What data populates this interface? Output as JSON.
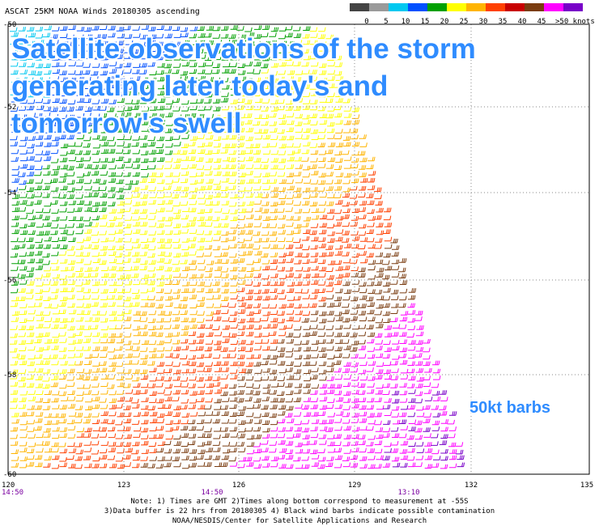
{
  "header": {
    "title": "ASCAT 25KM NOAA Winds 20180305 ascending"
  },
  "legend": {
    "labels": [
      "0",
      "5",
      "10",
      "15",
      "20",
      "25",
      "30",
      "35",
      "40",
      "45",
      ">50 knots"
    ],
    "colors": [
      "#444444",
      "#9a9a9a",
      "#00c8f0",
      "#0050ff",
      "#00a000",
      "#ffff00",
      "#ffb400",
      "#ff4000",
      "#c80000",
      "#7a3c10",
      "#ff00ff",
      "#7800c8"
    ]
  },
  "map": {
    "lat_labels": [
      "-50",
      "-52",
      "-54",
      "-56",
      "-58",
      "-60"
    ],
    "lon_labels": [
      "120",
      "123",
      "126",
      "129",
      "132",
      "135"
    ],
    "time_labels": [
      "14:50",
      "14:50",
      "13:10"
    ]
  },
  "overlay": {
    "headline": [
      "Satellite observations of the storm",
      "generating later today's and",
      "tomorrow's swell"
    ],
    "barb_note": "50kt barbs"
  },
  "footer": {
    "notes": [
      "Note: 1) Times are GMT 2)Times along bottom correspond to measurement at -55S",
      "3)Data buffer is 22 hrs from 20180305 4) Black wind barbs indicate possible contamination",
      "NOAA/NESDIS/Center for Satellite Applications and Research"
    ]
  }
}
